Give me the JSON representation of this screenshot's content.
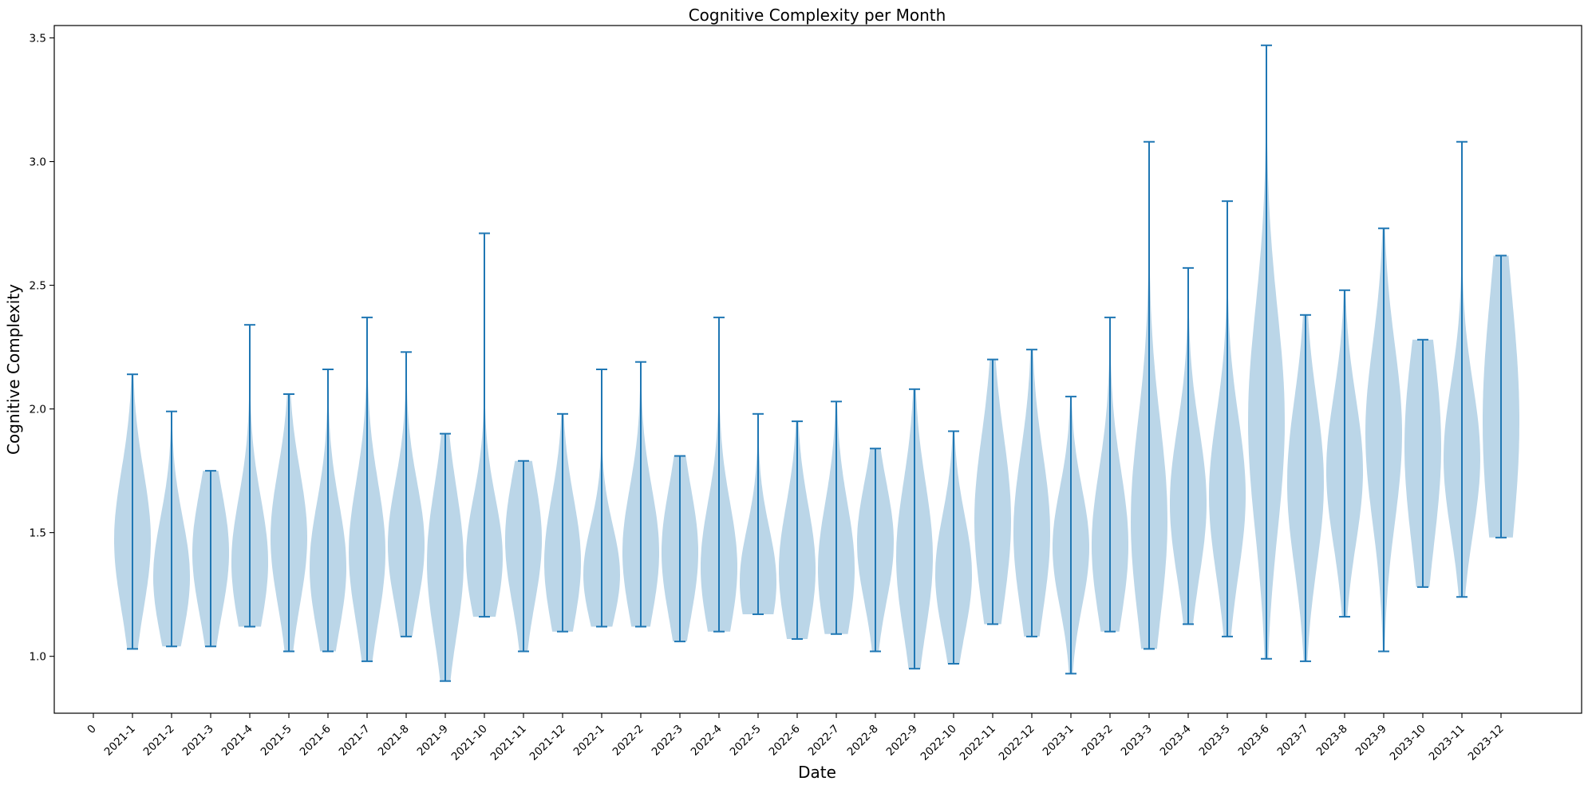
{
  "chart_data": {
    "type": "violin",
    "title": "Cognitive Complexity per Month",
    "xlabel": "Date",
    "ylabel": "Cognitive Complexity",
    "ylim": [
      0.77,
      3.55
    ],
    "yticks": [
      1.0,
      1.5,
      2.0,
      2.5,
      3.0,
      3.5
    ],
    "ytick_labels": [
      "1.0",
      "1.5",
      "2.0",
      "2.5",
      "3.0",
      "3.5"
    ],
    "x_start_label": "0",
    "grid": false,
    "legend": "none",
    "color": "#1f77b4",
    "categories": [
      "2021-1",
      "2021-2",
      "2021-3",
      "2021-4",
      "2021-5",
      "2021-6",
      "2021-7",
      "2021-8",
      "2021-9",
      "2021-10",
      "2021-11",
      "2021-12",
      "2022-1",
      "2022-2",
      "2022-3",
      "2022-4",
      "2022-5",
      "2022-6",
      "2022-7",
      "2022-8",
      "2022-9",
      "2022-10",
      "2022-11",
      "2022-12",
      "2023-1",
      "2023-2",
      "2023-3",
      "2023-4",
      "2023-5",
      "2023-6",
      "2023-7",
      "2023-8",
      "2023-9",
      "2023-10",
      "2023-11",
      "2023-12"
    ],
    "series": [
      {
        "min": 1.03,
        "max": 2.14,
        "mode": 1.47,
        "spread": 0.28
      },
      {
        "min": 1.04,
        "max": 1.99,
        "mode": 1.32,
        "spread": 0.24
      },
      {
        "min": 1.04,
        "max": 1.75,
        "mode": 1.42,
        "spread": 0.25
      },
      {
        "min": 1.12,
        "max": 2.34,
        "mode": 1.38,
        "spread": 0.26
      },
      {
        "min": 1.02,
        "max": 2.06,
        "mode": 1.48,
        "spread": 0.27
      },
      {
        "min": 1.02,
        "max": 2.16,
        "mode": 1.36,
        "spread": 0.26
      },
      {
        "min": 0.98,
        "max": 2.37,
        "mode": 1.42,
        "spread": 0.28
      },
      {
        "min": 1.08,
        "max": 2.23,
        "mode": 1.45,
        "spread": 0.25
      },
      {
        "min": 0.9,
        "max": 1.9,
        "mode": 1.38,
        "spread": 0.3
      },
      {
        "min": 1.16,
        "max": 2.71,
        "mode": 1.4,
        "spread": 0.24
      },
      {
        "min": 1.02,
        "max": 1.79,
        "mode": 1.47,
        "spread": 0.26
      },
      {
        "min": 1.1,
        "max": 1.98,
        "mode": 1.38,
        "spread": 0.26
      },
      {
        "min": 1.12,
        "max": 2.16,
        "mode": 1.33,
        "spread": 0.2
      },
      {
        "min": 1.12,
        "max": 2.19,
        "mode": 1.42,
        "spread": 0.26
      },
      {
        "min": 1.06,
        "max": 1.81,
        "mode": 1.42,
        "spread": 0.26
      },
      {
        "min": 1.1,
        "max": 2.37,
        "mode": 1.36,
        "spread": 0.26
      },
      {
        "min": 1.17,
        "max": 1.98,
        "mode": 1.3,
        "spread": 0.22
      },
      {
        "min": 1.07,
        "max": 1.95,
        "mode": 1.35,
        "spread": 0.26
      },
      {
        "min": 1.09,
        "max": 2.03,
        "mode": 1.35,
        "spread": 0.27
      },
      {
        "min": 1.02,
        "max": 1.84,
        "mode": 1.46,
        "spread": 0.24
      },
      {
        "min": 0.95,
        "max": 2.08,
        "mode": 1.4,
        "spread": 0.3
      },
      {
        "min": 0.97,
        "max": 1.91,
        "mode": 1.33,
        "spread": 0.24
      },
      {
        "min": 1.13,
        "max": 2.2,
        "mode": 1.55,
        "spread": 0.34
      },
      {
        "min": 1.08,
        "max": 2.24,
        "mode": 1.5,
        "spread": 0.32
      },
      {
        "min": 0.93,
        "max": 2.05,
        "mode": 1.44,
        "spread": 0.24
      },
      {
        "min": 1.1,
        "max": 2.37,
        "mode": 1.45,
        "spread": 0.3
      },
      {
        "min": 1.03,
        "max": 3.08,
        "mode": 1.55,
        "spread": 0.4
      },
      {
        "min": 1.13,
        "max": 2.57,
        "mode": 1.62,
        "spread": 0.3
      },
      {
        "min": 1.08,
        "max": 2.84,
        "mode": 1.65,
        "spread": 0.32
      },
      {
        "min": 0.99,
        "max": 3.47,
        "mode": 1.95,
        "spread": 0.45
      },
      {
        "min": 0.98,
        "max": 2.38,
        "mode": 1.7,
        "spread": 0.34
      },
      {
        "min": 1.16,
        "max": 2.48,
        "mode": 1.75,
        "spread": 0.3
      },
      {
        "min": 1.02,
        "max": 2.73,
        "mode": 1.9,
        "spread": 0.36
      },
      {
        "min": 1.28,
        "max": 2.28,
        "mode": 1.85,
        "spread": 0.4
      },
      {
        "min": 1.24,
        "max": 3.08,
        "mode": 1.8,
        "spread": 0.3
      },
      {
        "min": 1.48,
        "max": 2.62,
        "mode": 1.95,
        "spread": 0.5
      }
    ]
  }
}
